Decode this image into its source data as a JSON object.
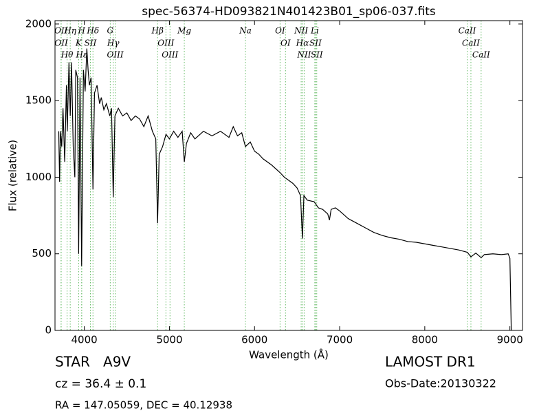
{
  "chart_data": {
    "type": "line",
    "title": "spec-56374-HD093821N401423B01_sp06-037.fits",
    "xlabel": "Wavelength (Å)",
    "ylabel": "Flux (relative)",
    "color": "#000000",
    "line_color": "#66bb66",
    "xlim": [
      3656,
      9148
    ],
    "ylim": [
      0,
      2022
    ],
    "xticks": [
      4000,
      5000,
      6000,
      7000,
      8000,
      9000
    ],
    "yticks": [
      0,
      500,
      1000,
      1500,
      2000
    ],
    "x": [
      3700,
      3710,
      3720,
      3735,
      3750,
      3770,
      3790,
      3800,
      3820,
      3835,
      3850,
      3870,
      3889,
      3900,
      3920,
      3934,
      3950,
      3969,
      3990,
      4010,
      4030,
      4045,
      4060,
      4080,
      4102,
      4120,
      4150,
      4180,
      4200,
      4230,
      4260,
      4300,
      4320,
      4340,
      4360,
      4400,
      4450,
      4500,
      4550,
      4600,
      4650,
      4700,
      4750,
      4800,
      4840,
      4861,
      4880,
      4920,
      4960,
      5000,
      5050,
      5100,
      5150,
      5175,
      5200,
      5250,
      5300,
      5400,
      5500,
      5600,
      5700,
      5750,
      5800,
      5850,
      5893,
      5950,
      6000,
      6050,
      6100,
      6200,
      6300,
      6350,
      6400,
      6450,
      6500,
      6540,
      6563,
      6580,
      6620,
      6700,
      6750,
      6800,
      6860,
      6880,
      6900,
      6950,
      7000,
      7100,
      7200,
      7300,
      7400,
      7500,
      7600,
      7700,
      7800,
      7900,
      8000,
      8100,
      8200,
      8300,
      8400,
      8500,
      8542,
      8600,
      8662,
      8700,
      8800,
      8900,
      8980,
      9000,
      9016
    ],
    "values": [
      1300,
      970,
      1300,
      1200,
      1450,
      1100,
      1600,
      1300,
      1750,
      1400,
      1750,
      1200,
      1000,
      1700,
      1650,
      500,
      1650,
      420,
      1700,
      1560,
      1840,
      1700,
      1600,
      1650,
      920,
      1550,
      1600,
      1480,
      1520,
      1440,
      1480,
      1400,
      1450,
      870,
      1400,
      1450,
      1400,
      1420,
      1370,
      1400,
      1380,
      1330,
      1400,
      1300,
      1250,
      700,
      1150,
      1200,
      1280,
      1250,
      1300,
      1260,
      1300,
      1100,
      1220,
      1290,
      1250,
      1300,
      1270,
      1300,
      1260,
      1330,
      1270,
      1290,
      1200,
      1230,
      1170,
      1150,
      1120,
      1080,
      1030,
      1000,
      980,
      960,
      930,
      880,
      600,
      880,
      850,
      840,
      800,
      790,
      760,
      720,
      790,
      800,
      780,
      730,
      700,
      670,
      640,
      620,
      605,
      595,
      580,
      575,
      565,
      555,
      545,
      535,
      525,
      510,
      480,
      505,
      475,
      495,
      500,
      495,
      500,
      470,
      0
    ],
    "lines": [
      {
        "label": "OII",
        "x": 3727
      },
      {
        "label": "OII",
        "x": 3729
      },
      {
        "label": "Hθ",
        "x": 3798
      },
      {
        "label": "Hη",
        "x": 3835
      },
      {
        "label": "K",
        "x": 3934
      },
      {
        "label": "Hε",
        "x": 3970
      },
      {
        "label": "H",
        "x": 3969
      },
      {
        "label": "SII",
        "x": 4072
      },
      {
        "label": "Hδ",
        "x": 4102
      },
      {
        "label": "G",
        "x": 4305
      },
      {
        "label": "Hγ",
        "x": 4340
      },
      {
        "label": "OIII",
        "x": 4363
      },
      {
        "label": "Hβ",
        "x": 4861
      },
      {
        "label": "OIII",
        "x": 4959
      },
      {
        "label": "OIII",
        "x": 5007
      },
      {
        "label": "Mg",
        "x": 5175
      },
      {
        "label": "Na",
        "x": 5893
      },
      {
        "label": "OI",
        "x": 6300
      },
      {
        "label": "OI",
        "x": 6364
      },
      {
        "label": "NII",
        "x": 6548
      },
      {
        "label": "Hα",
        "x": 6563
      },
      {
        "label": "NII",
        "x": 6583
      },
      {
        "label": "Li",
        "x": 6708
      },
      {
        "label": "SII",
        "x": 6716
      },
      {
        "label": "SII",
        "x": 6731
      },
      {
        "label": "CaII",
        "x": 8498
      },
      {
        "label": "CaII",
        "x": 8542
      },
      {
        "label": "CaII",
        "x": 8662
      }
    ],
    "info_left": [
      "STAR   A9V",
      "cz = 36.4 ± 0.1",
      "RA = 147.05059, DEC = 40.12938"
    ],
    "info_right": [
      "LAMOST DR1",
      "Obs-Date:20130322"
    ]
  }
}
